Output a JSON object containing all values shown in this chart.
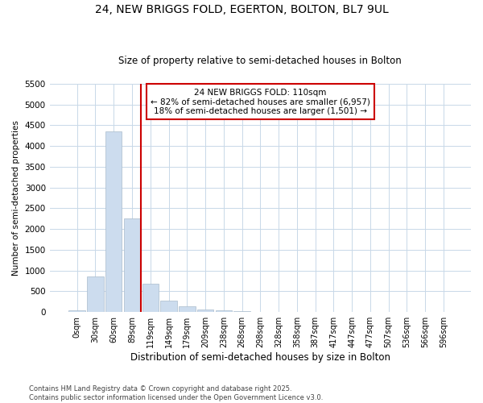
{
  "title": "24, NEW BRIGGS FOLD, EGERTON, BOLTON, BL7 9UL",
  "subtitle": "Size of property relative to semi-detached houses in Bolton",
  "xlabel": "Distribution of semi-detached houses by size in Bolton",
  "ylabel": "Number of semi-detached properties",
  "bar_labels": [
    "0sqm",
    "30sqm",
    "60sqm",
    "89sqm",
    "119sqm",
    "149sqm",
    "179sqm",
    "209sqm",
    "238sqm",
    "268sqm",
    "298sqm",
    "328sqm",
    "358sqm",
    "387sqm",
    "417sqm",
    "447sqm",
    "477sqm",
    "507sqm",
    "536sqm",
    "566sqm",
    "596sqm"
  ],
  "bar_values": [
    50,
    850,
    4350,
    2250,
    680,
    270,
    140,
    70,
    50,
    20,
    10,
    0,
    0,
    0,
    0,
    0,
    0,
    0,
    0,
    0,
    0
  ],
  "bar_color": "#ccdcee",
  "bar_edge_color": "#aabbcc",
  "grid_color": "#c8d8e8",
  "vline_color": "#cc0000",
  "vline_pos": 3.5,
  "annotation_text": "24 NEW BRIGGS FOLD: 110sqm\n← 82% of semi-detached houses are smaller (6,957)\n18% of semi-detached houses are larger (1,501) →",
  "annotation_box_color": "#cc0000",
  "ylim": [
    0,
    5500
  ],
  "yticks": [
    0,
    500,
    1000,
    1500,
    2000,
    2500,
    3000,
    3500,
    4000,
    4500,
    5000,
    5500
  ],
  "footer": "Contains HM Land Registry data © Crown copyright and database right 2025.\nContains public sector information licensed under the Open Government Licence v3.0.",
  "bg_color": "#ffffff"
}
